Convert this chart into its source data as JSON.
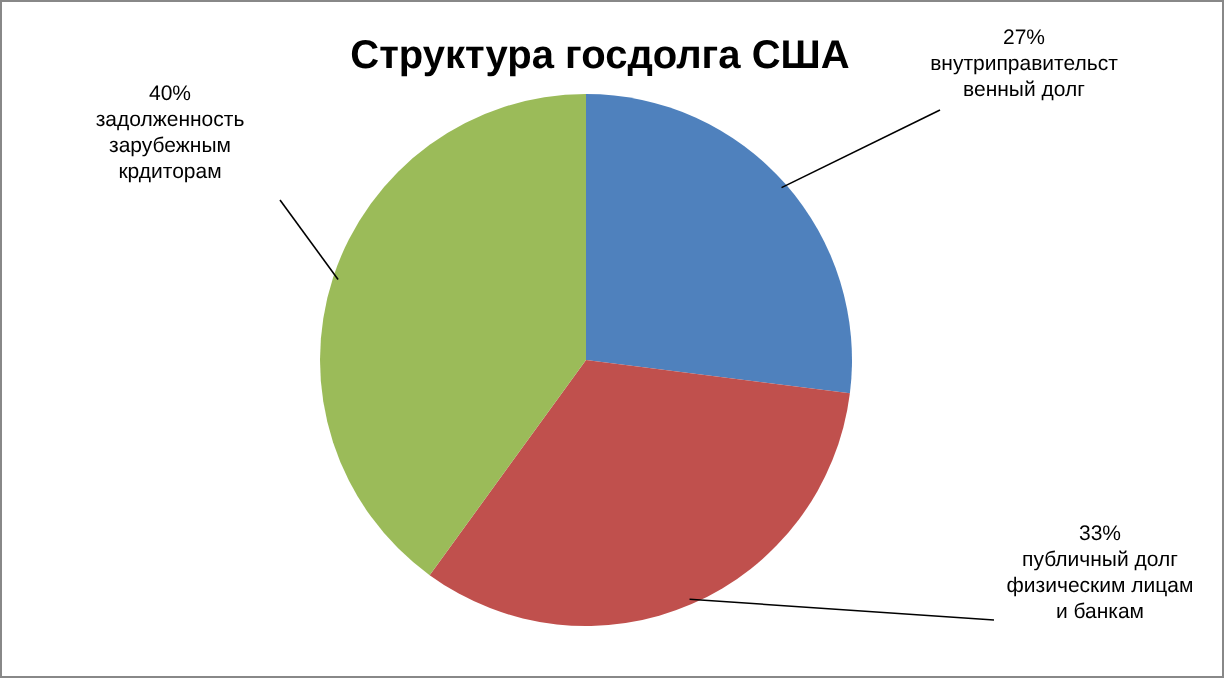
{
  "chart_data": {
    "type": "pie",
    "title": "Структура госдолга США",
    "categories": [
      "внутриправительственный долг",
      "публичный долг физическим лицам и банкам",
      "задолженность зарубежным крдиторам"
    ],
    "values": [
      27,
      33,
      40
    ],
    "colors": [
      "#4f81bd",
      "#c0504d",
      "#9bbb59"
    ],
    "value_labels": [
      "27%",
      "33%",
      "40%"
    ]
  }
}
